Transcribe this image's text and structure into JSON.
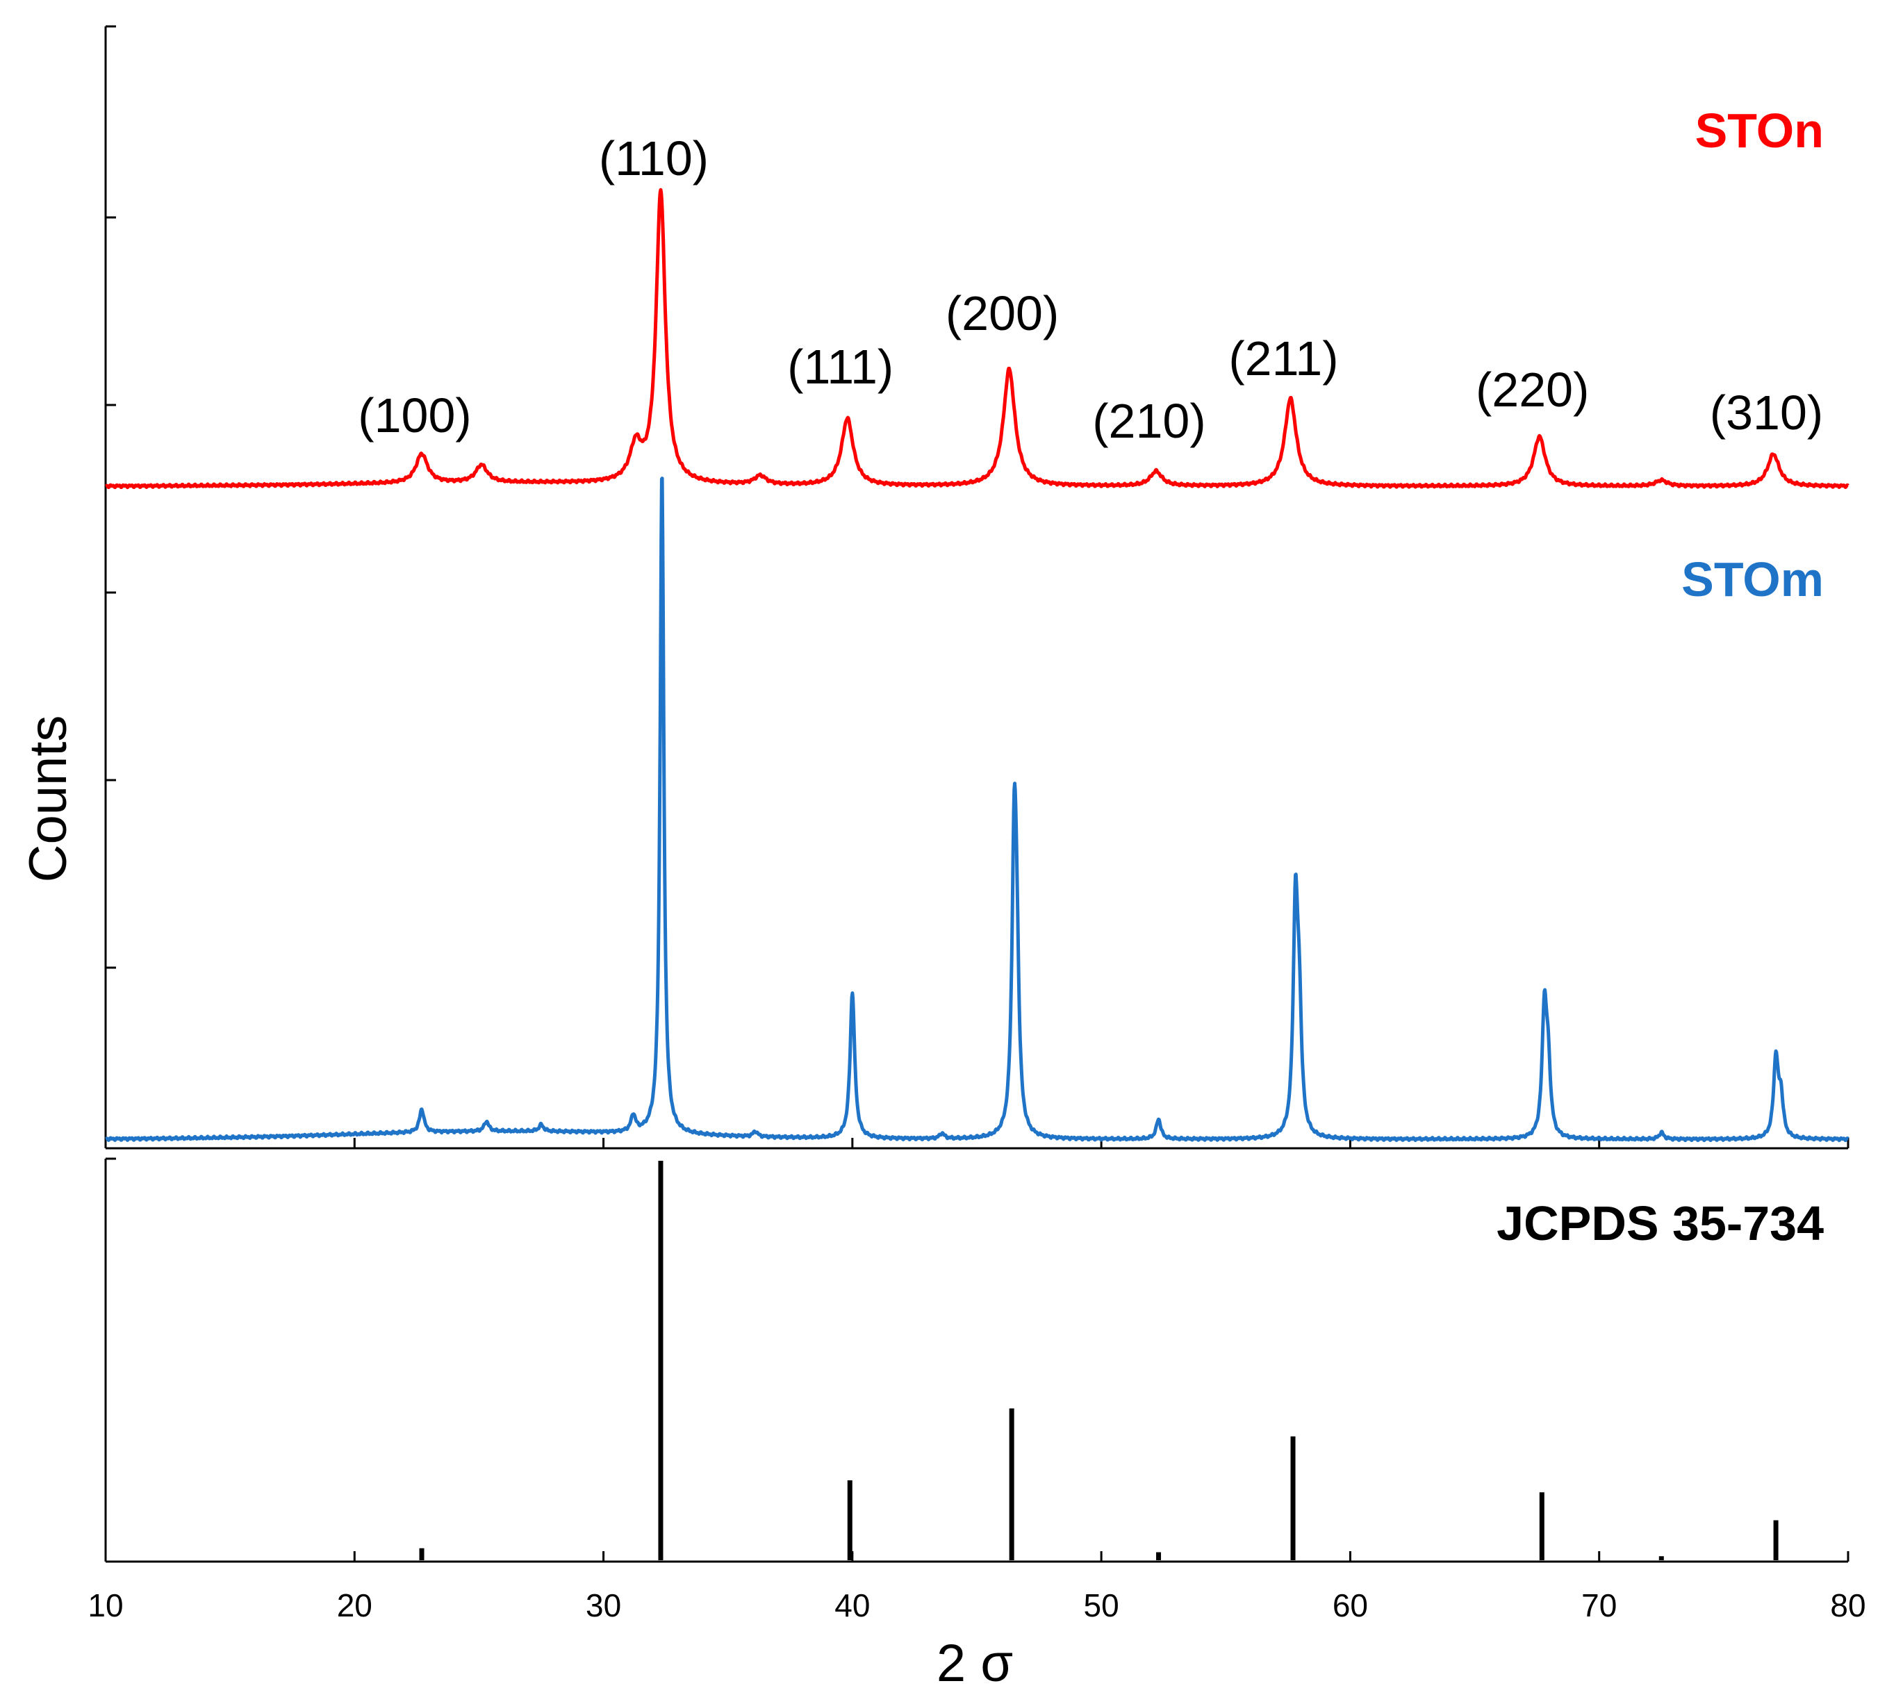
{
  "chart_data": {
    "type": "line",
    "xlabel": "2 σ",
    "ylabel": "Counts",
    "xlim": [
      10,
      80
    ],
    "x_ticks": [
      10,
      20,
      30,
      40,
      50,
      60,
      70,
      80
    ],
    "y_scale": "arbitrary (stacked, offset traces)",
    "series": [
      {
        "name": "STOn",
        "color": "#ff0000",
        "baseline": 0.1,
        "peaks": [
          {
            "x": 22.7,
            "y": 0.1
          },
          {
            "x": 25.1,
            "y": 0.06
          },
          {
            "x": 31.3,
            "y": 0.12
          },
          {
            "x": 32.3,
            "y": 1.0
          },
          {
            "x": 36.3,
            "y": 0.03
          },
          {
            "x": 39.8,
            "y": 0.23
          },
          {
            "x": 46.3,
            "y": 0.4
          },
          {
            "x": 52.2,
            "y": 0.05
          },
          {
            "x": 57.6,
            "y": 0.3
          },
          {
            "x": 67.6,
            "y": 0.17
          },
          {
            "x": 72.5,
            "y": 0.02
          },
          {
            "x": 77.0,
            "y": 0.11
          }
        ]
      },
      {
        "name": "STOm",
        "color": "#1f74c8",
        "baseline": 0.0,
        "peaks": [
          {
            "x": 22.7,
            "y": 0.035
          },
          {
            "x": 25.3,
            "y": 0.015
          },
          {
            "x": 27.5,
            "y": 0.01
          },
          {
            "x": 31.2,
            "y": 0.025
          },
          {
            "x": 32.35,
            "y": 1.0
          },
          {
            "x": 36.1,
            "y": 0.008
          },
          {
            "x": 40.0,
            "y": 0.22
          },
          {
            "x": 43.6,
            "y": 0.008
          },
          {
            "x": 46.5,
            "y": 0.41
          },
          {
            "x": 46.6,
            "y": 0.21
          },
          {
            "x": 52.3,
            "y": 0.03
          },
          {
            "x": 57.8,
            "y": 0.34
          },
          {
            "x": 57.95,
            "y": 0.17
          },
          {
            "x": 67.8,
            "y": 0.19
          },
          {
            "x": 67.95,
            "y": 0.1
          },
          {
            "x": 72.5,
            "y": 0.01
          },
          {
            "x": 77.1,
            "y": 0.12
          },
          {
            "x": 77.3,
            "y": 0.06
          }
        ]
      }
    ],
    "reference": {
      "name": "JCPDS 35-734",
      "color": "#000000",
      "sticks": [
        {
          "x": 22.7,
          "y": 0.03
        },
        {
          "x": 32.3,
          "y": 1.0
        },
        {
          "x": 39.9,
          "y": 0.2
        },
        {
          "x": 46.4,
          "y": 0.38
        },
        {
          "x": 52.3,
          "y": 0.02
        },
        {
          "x": 57.7,
          "y": 0.31
        },
        {
          "x": 67.7,
          "y": 0.17
        },
        {
          "x": 72.5,
          "y": 0.01
        },
        {
          "x": 77.1,
          "y": 0.1
        }
      ]
    },
    "annotations": [
      {
        "text": "(100)",
        "x": 22.7
      },
      {
        "text": "(110)",
        "x": 32.3
      },
      {
        "text": "(111)",
        "x": 39.8
      },
      {
        "text": "(200)",
        "x": 46.3
      },
      {
        "text": "(210)",
        "x": 52.2
      },
      {
        "text": "(211)",
        "x": 57.6
      },
      {
        "text": "(220)",
        "x": 67.6
      },
      {
        "text": "(310)",
        "x": 77.0
      }
    ]
  }
}
